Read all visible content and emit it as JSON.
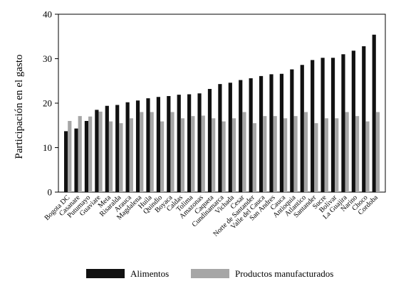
{
  "chart_data": {
    "type": "bar",
    "ylabel": "Participación en el gasto",
    "xlabel": "",
    "ylim": [
      0,
      40
    ],
    "yticks": [
      0,
      10,
      20,
      30,
      40
    ],
    "grid": false,
    "legend_position": "bottom",
    "categories": [
      "Bogota DC",
      "Casanare",
      "Putumayo",
      "Guaviare",
      "Meta",
      "Risaralda",
      "Arauca",
      "Magdalena",
      "Huila",
      "Quindio",
      "Boyaca",
      "Caldas",
      "Tolima",
      "Amazonas",
      "Caqueta",
      "Cundinamarca",
      "Vichada",
      "Cesar",
      "Norte de Santander",
      "Valle del Cauca",
      "San Andres",
      "Cauca",
      "Antioquia",
      "Atlantico",
      "Santander",
      "Sucre",
      "Bolivar",
      "La Guajira",
      "Narino",
      "Choco",
      "Cordoba"
    ],
    "series": [
      {
        "name": "Alimentos",
        "color": "#111111",
        "values": [
          13.7,
          14.3,
          16.0,
          18.5,
          19.4,
          19.6,
          20.2,
          20.6,
          21.1,
          21.4,
          21.6,
          21.9,
          22.0,
          22.2,
          23.2,
          24.3,
          24.6,
          25.2,
          25.6,
          26.1,
          26.5,
          26.6,
          27.6,
          28.6,
          29.7,
          30.2,
          30.2,
          31.0,
          31.8,
          32.8,
          35.4
        ]
      },
      {
        "name": "Productos manufacturados",
        "color": "#a6a6a6",
        "values": [
          16.0,
          17.1,
          17.0,
          18.1,
          15.9,
          15.5,
          16.6,
          18.0,
          18.0,
          15.9,
          18.0,
          16.6,
          17.1,
          17.2,
          16.6,
          15.9,
          16.6,
          18.0,
          15.5,
          17.1,
          17.1,
          16.6,
          17.1,
          18.0,
          15.5,
          16.6,
          16.6,
          18.0,
          17.1,
          15.9,
          18.0
        ]
      }
    ]
  }
}
